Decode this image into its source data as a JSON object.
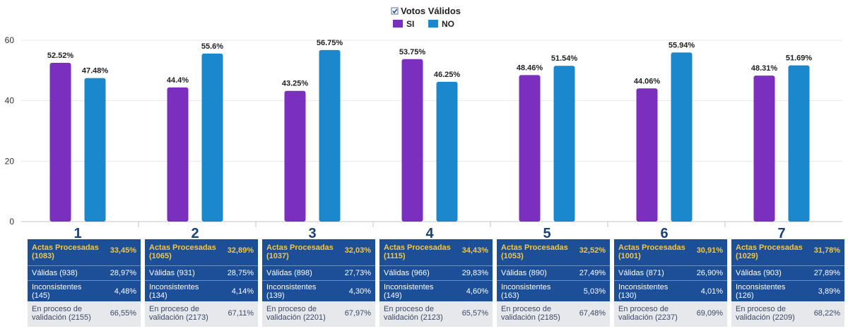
{
  "chart_data": {
    "type": "bar",
    "legend_title": "Votos Válidos",
    "categories": [
      "1",
      "2",
      "3",
      "4",
      "5",
      "6",
      "7"
    ],
    "series": [
      {
        "name": "SI",
        "color": "#7b2fbe",
        "values": [
          52.52,
          44.4,
          43.25,
          53.75,
          48.46,
          44.06,
          48.31
        ]
      },
      {
        "name": "NO",
        "color": "#1b87cc",
        "values": [
          47.48,
          55.6,
          56.75,
          46.25,
          51.54,
          55.94,
          51.69
        ]
      }
    ],
    "ylim": [
      0,
      60
    ],
    "yticks": [
      "0",
      "20",
      "40",
      "60"
    ],
    "data_labels": {
      "SI": [
        "52.52%",
        "44.4%",
        "43.25%",
        "53.75%",
        "48.46%",
        "44.06%",
        "48.31%"
      ],
      "NO": [
        "47.48%",
        "55.6%",
        "56.75%",
        "46.25%",
        "51.54%",
        "55.94%",
        "51.69%"
      ]
    },
    "grid": true,
    "legend_position": "top-center"
  },
  "tables": [
    {
      "actas_label": "Actas Procesadas (1083)",
      "actas_pct": "33,45%",
      "validas_label": "Válidas (938)",
      "validas_pct": "28,97%",
      "incons_label": "Inconsistentes (145)",
      "incons_pct": "4,48%",
      "proceso_label": "En proceso de validación (2155)",
      "proceso_pct": "66,55%"
    },
    {
      "actas_label": "Actas Procesadas (1065)",
      "actas_pct": "32,89%",
      "validas_label": "Válidas (931)",
      "validas_pct": "28,75%",
      "incons_label": "Inconsistentes (134)",
      "incons_pct": "4,14%",
      "proceso_label": "En proceso de validación (2173)",
      "proceso_pct": "67,11%"
    },
    {
      "actas_label": "Actas Procesadas (1037)",
      "actas_pct": "32,03%",
      "validas_label": "Válidas (898)",
      "validas_pct": "27,73%",
      "incons_label": "Inconsistentes (139)",
      "incons_pct": "4,30%",
      "proceso_label": "En proceso de validación (2201)",
      "proceso_pct": "67,97%"
    },
    {
      "actas_label": "Actas Procesadas (1115)",
      "actas_pct": "34,43%",
      "validas_label": "Válidas (966)",
      "validas_pct": "29,83%",
      "incons_label": "Inconsistentes (149)",
      "incons_pct": "4,60%",
      "proceso_label": "En proceso de validación (2123)",
      "proceso_pct": "65,57%"
    },
    {
      "actas_label": "Actas Procesadas (1053)",
      "actas_pct": "32,52%",
      "validas_label": "Válidas (890)",
      "validas_pct": "27,49%",
      "incons_label": "Inconsistentes (163)",
      "incons_pct": "5,03%",
      "proceso_label": "En proceso de validación (2185)",
      "proceso_pct": "67,48%"
    },
    {
      "actas_label": "Actas Procesadas (1001)",
      "actas_pct": "30,91%",
      "validas_label": "Válidas (871)",
      "validas_pct": "26,90%",
      "incons_label": "Inconsistentes (130)",
      "incons_pct": "4,01%",
      "proceso_label": "En proceso de validación (2237)",
      "proceso_pct": "69,09%"
    },
    {
      "actas_label": "Actas Procesadas (1029)",
      "actas_pct": "31,78%",
      "validas_label": "Válidas (903)",
      "validas_pct": "27,89%",
      "incons_label": "Inconsistentes (126)",
      "incons_pct": "3,89%",
      "proceso_label": "En proceso de validación (2209)",
      "proceso_pct": "68,22%"
    }
  ]
}
